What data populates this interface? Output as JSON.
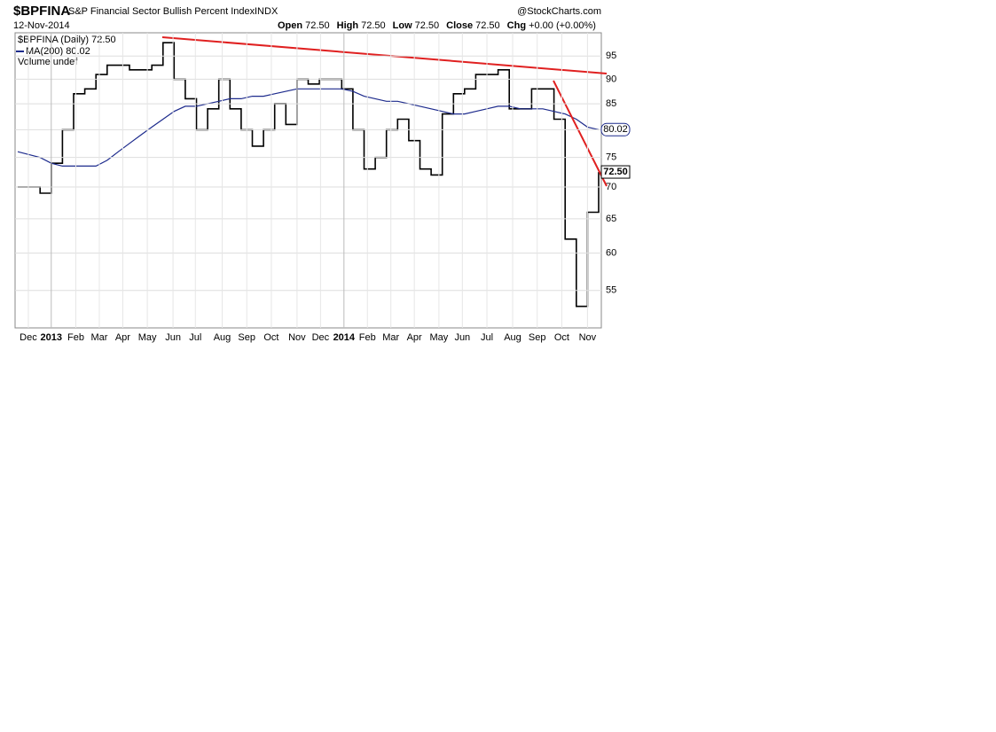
{
  "chart_data": {
    "type": "line",
    "symbol": "$BPFINA",
    "title": "S&P Financial Sector Bullish Percent Index",
    "exchange": "INDX",
    "source": "@StockCharts.com",
    "date": "12-Nov-2014",
    "quote": [
      {
        "label": "Open",
        "value": "72.50"
      },
      {
        "label": "High",
        "value": "72.50"
      },
      {
        "label": "Low",
        "value": "72.50"
      },
      {
        "label": "Close",
        "value": "72.50"
      },
      {
        "label": "Chg",
        "value": "+0.00 (+0.00%)"
      }
    ],
    "volume_legend": "Volume undef",
    "log_scale": true,
    "grid": true,
    "xlim": [
      0,
      52
    ],
    "ylim": [
      50.4,
      100.3
    ],
    "yticks": [
      55,
      60,
      65,
      70,
      75,
      80,
      85,
      90,
      95
    ],
    "xticks": [
      {
        "value": 0.95,
        "label": "Dec"
      },
      {
        "value": 3.0,
        "label": "2013"
      },
      {
        "value": 5.2,
        "label": "Feb"
      },
      {
        "value": 7.3,
        "label": "Mar"
      },
      {
        "value": 9.4,
        "label": "Apr"
      },
      {
        "value": 11.6,
        "label": "May"
      },
      {
        "value": 13.9,
        "label": "Jun"
      },
      {
        "value": 15.9,
        "label": "Jul"
      },
      {
        "value": 18.3,
        "label": "Aug"
      },
      {
        "value": 20.5,
        "label": "Sep"
      },
      {
        "value": 22.7,
        "label": "Oct"
      },
      {
        "value": 25.0,
        "label": "Nov"
      },
      {
        "value": 27.1,
        "label": "Dec"
      },
      {
        "value": 29.2,
        "label": "2014"
      },
      {
        "value": 31.3,
        "label": "Feb"
      },
      {
        "value": 33.4,
        "label": "Mar"
      },
      {
        "value": 35.5,
        "label": "Apr"
      },
      {
        "value": 37.7,
        "label": "May"
      },
      {
        "value": 39.8,
        "label": "Jun"
      },
      {
        "value": 42.0,
        "label": "Jul"
      },
      {
        "value": 44.3,
        "label": "Aug"
      },
      {
        "value": 46.5,
        "label": "Sep"
      },
      {
        "value": 48.7,
        "label": "Oct"
      },
      {
        "value": 51.0,
        "label": "Nov"
      }
    ],
    "series": [
      {
        "name": "$BPFINA (Daily) 72.50",
        "color": "#000000",
        "last_label": "72.50",
        "values": [
          70,
          70,
          69,
          74,
          80,
          87,
          88,
          91,
          93,
          93,
          92,
          92,
          93,
          98,
          90,
          86,
          80,
          84,
          90,
          84,
          80,
          77,
          80,
          85,
          81,
          90,
          89,
          90,
          90,
          88,
          80,
          73,
          75,
          80,
          82,
          78,
          73,
          72,
          83,
          87,
          88,
          91,
          91,
          92,
          84,
          84,
          88,
          88,
          82,
          62,
          53,
          66,
          72.5
        ]
      },
      {
        "name": "MA(200) 80.02",
        "color": "#1c2a8c",
        "last_label": "80.02",
        "values": [
          76,
          75.5,
          75,
          74,
          73.5,
          73.5,
          73.5,
          73.5,
          74.5,
          76,
          77.5,
          79,
          80.5,
          82,
          83.5,
          84.5,
          84.5,
          85,
          85.5,
          86,
          86,
          86.5,
          86.5,
          87,
          87.5,
          88,
          88,
          88,
          88,
          88,
          87.5,
          86.5,
          86,
          85.5,
          85.5,
          85,
          84.5,
          84,
          83.5,
          83,
          83,
          83.5,
          84,
          84.5,
          84.5,
          84,
          84,
          84,
          83.5,
          83,
          82,
          80.5,
          80.02
        ]
      }
    ]
  }
}
